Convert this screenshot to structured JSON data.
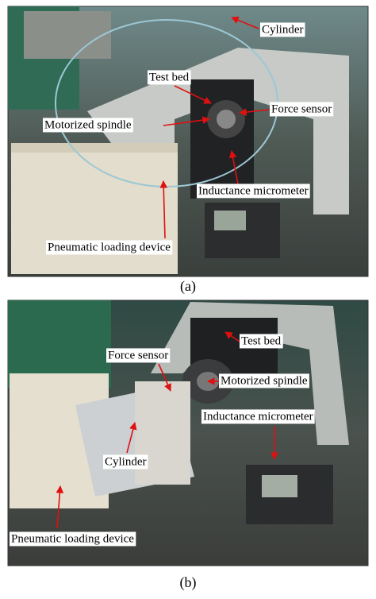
{
  "panels": [
    {
      "caption": "(a)",
      "labels": [
        "Cylinder",
        "Test bed",
        "Force sensor",
        "Motorized spindle",
        "Inductance micrometer",
        "Pneumatic loading device"
      ]
    },
    {
      "caption": "(b)",
      "labels": [
        "Test bed",
        "Force sensor",
        "Motorized spindle",
        "Inductance micrometer",
        "Cylinder",
        "Pneumatic loading device"
      ]
    }
  ]
}
